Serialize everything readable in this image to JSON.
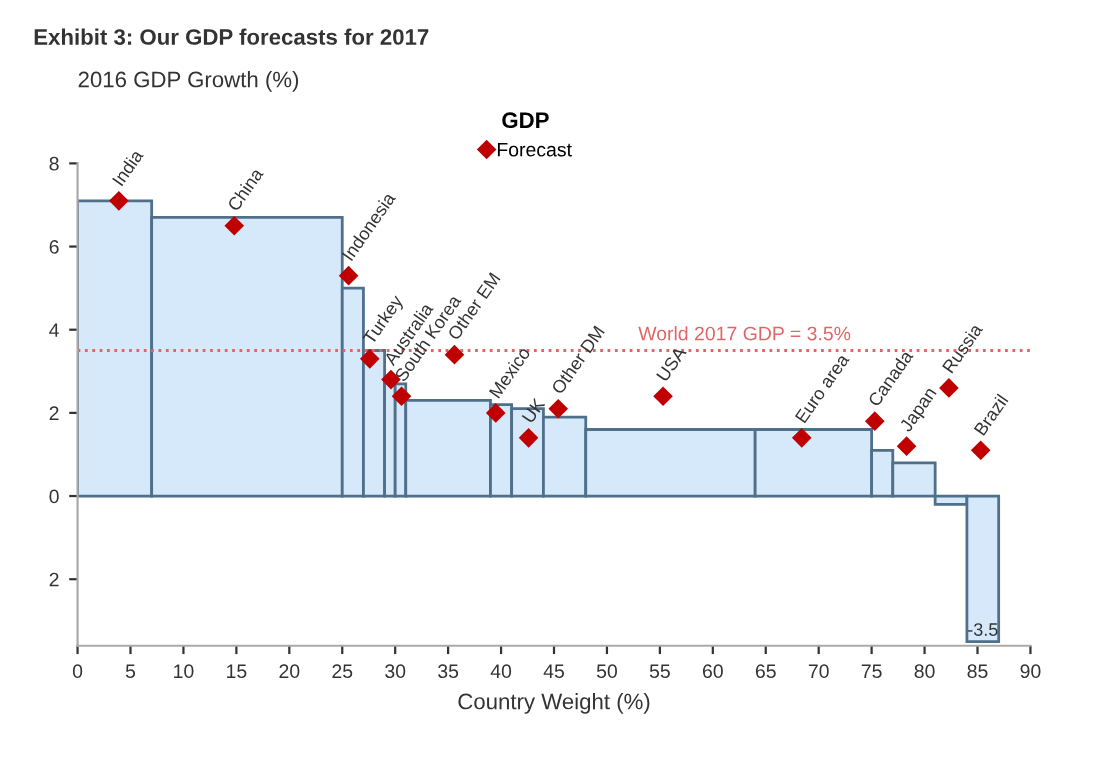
{
  "chart_data": {
    "type": "histogram",
    "title": "Exhibit 3: Our GDP forecasts for 2017",
    "xlabel": "Country Weight (%)",
    "ylabel": "2016 GDP Growth (%)",
    "legend_title": "GDP",
    "bins": [
      0,
      7,
      25,
      27,
      29,
      30,
      31,
      39,
      41,
      44,
      48,
      64,
      75,
      77,
      81,
      84,
      87
    ],
    "values": [
      7.1,
      6.7,
      5.0,
      3.5,
      2.8,
      2.7,
      2.3,
      2.2,
      2.1,
      1.9,
      1.6,
      1.6,
      1.1,
      0.8,
      -0.2,
      -3.5
    ],
    "value_labels": [
      null,
      null,
      null,
      null,
      null,
      null,
      null,
      null,
      null,
      null,
      null,
      null,
      null,
      null,
      null,
      "-3.5"
    ],
    "color": "#d5e9fa",
    "series": [
      {
        "name": "Forecast",
        "type": "scatter",
        "color": "#c00000",
        "marker": "diamond",
        "x": [
          3.9,
          14.8,
          25.6,
          27.6,
          29.6,
          30.6,
          35.6,
          39.5,
          42.6,
          45.4,
          55.3,
          68.4,
          75.3,
          78.3,
          82.3,
          85.3
        ],
        "values": [
          7.1,
          6.5,
          5.3,
          3.3,
          2.8,
          2.4,
          3.4,
          2.0,
          1.4,
          2.1,
          2.4,
          1.4,
          1.8,
          1.2,
          2.6,
          1.1
        ]
      }
    ],
    "annotations": [
      {
        "text": "India",
        "x": 3.9,
        "y": 7.1
      },
      {
        "text": "China",
        "x": 14.8,
        "y": 6.5
      },
      {
        "text": "Indonesia",
        "x": 25.6,
        "y": 5.3
      },
      {
        "text": "Turkey",
        "x": 27.6,
        "y": 3.3
      },
      {
        "text": "Australia",
        "x": 29.6,
        "y": 2.8
      },
      {
        "text": "South Korea",
        "x": 30.6,
        "y": 2.4
      },
      {
        "text": "Other EM",
        "x": 35.6,
        "y": 3.4
      },
      {
        "text": "Mexico",
        "x": 39.5,
        "y": 2.0
      },
      {
        "text": "UK",
        "x": 42.6,
        "y": 1.4
      },
      {
        "text": "Other DM",
        "x": 45.4,
        "y": 2.1
      },
      {
        "text": "USA",
        "x": 55.3,
        "y": 2.4
      },
      {
        "text": "Euro area",
        "x": 68.4,
        "y": 1.4
      },
      {
        "text": "Canada",
        "x": 75.3,
        "y": 1.8
      },
      {
        "text": "Japan",
        "x": 78.3,
        "y": 1.2
      },
      {
        "text": "Russia",
        "x": 82.3,
        "y": 2.6
      },
      {
        "text": "Brazil",
        "x": 85.3,
        "y": 1.1
      }
    ],
    "ref_lines": [
      {
        "axis": "y",
        "value": 3.5,
        "label": "World 2017 GDP = 3.5%",
        "color": "#e06666",
        "line_style": "dotted"
      }
    ],
    "xlim": [
      0,
      90
    ],
    "xticks": [
      0,
      5,
      10,
      15,
      20,
      25,
      30,
      35,
      40,
      45,
      50,
      55,
      60,
      65,
      70,
      75,
      80,
      85,
      90
    ],
    "ylim": [
      -3.6,
      8
    ],
    "yticks": [
      {
        "value": -2,
        "label": "2"
      },
      0,
      2,
      4,
      6,
      8
    ],
    "legend": "top",
    "grid": false
  }
}
